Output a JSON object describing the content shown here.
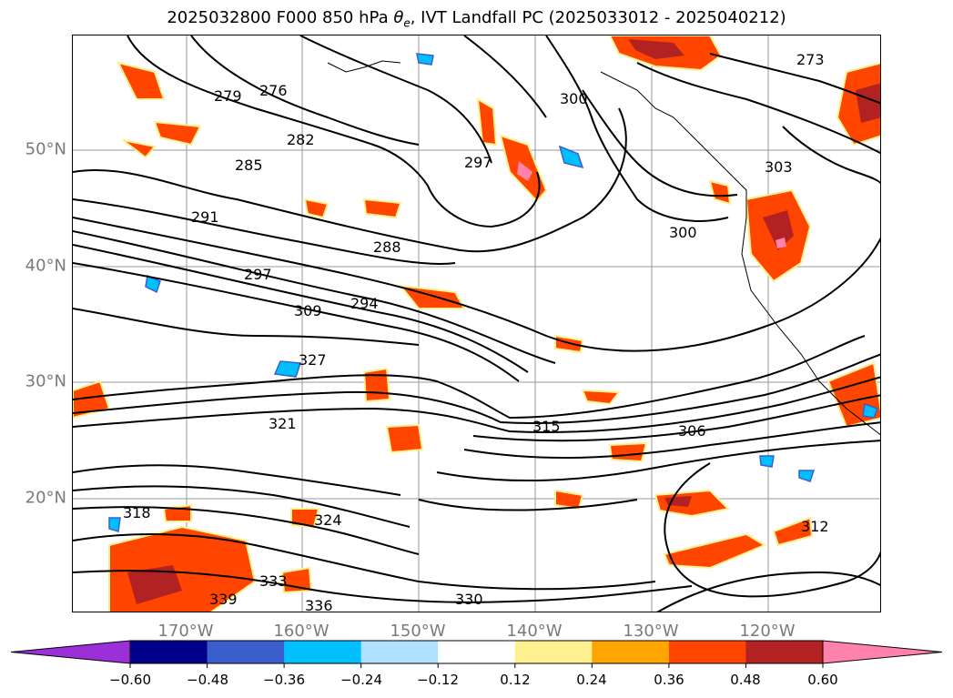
{
  "title": {
    "date": "2025032800",
    "forecast": "F000",
    "level": "850 hPa",
    "variable_symbol": "θ",
    "variable_subscript": "e",
    "rest": ", IVT Landfall PC (2025033012 - 2025040212)"
  },
  "map": {
    "lat_labels": [
      "50°N",
      "40°N",
      "30°N",
      "20°N"
    ],
    "lon_labels": [
      "170°W",
      "160°W",
      "150°W",
      "140°W",
      "130°W",
      "120°W"
    ],
    "contour_labels": [
      "279",
      "276",
      "282",
      "285",
      "291",
      "288",
      "297",
      "294",
      "300",
      "309",
      "303",
      "306",
      "327",
      "324",
      "321",
      "318",
      "315",
      "333",
      "336",
      "312",
      "273",
      "300",
      "297",
      "330",
      "339"
    ],
    "shading_colors": [
      "#9b30d9",
      "#00008b",
      "#3a5fcd",
      "#00bfff",
      "#b0e2ff",
      "#ffffff",
      "#fff08f",
      "#ffa500",
      "#ff4500",
      "#b22222",
      "#ff82ab"
    ]
  },
  "colorbar": {
    "ticks": [
      "−0.60",
      "−0.48",
      "−0.36",
      "−0.24",
      "−0.12",
      "0.12",
      "0.24",
      "0.36",
      "0.48",
      "0.60"
    ],
    "colors": [
      "#9b30d9",
      "#00008b",
      "#3a5fcd",
      "#00bfff",
      "#b0e2ff",
      "#ffffff",
      "#fff08f",
      "#ffa500",
      "#ff4500",
      "#b22222",
      "#ff82ab"
    ]
  }
}
